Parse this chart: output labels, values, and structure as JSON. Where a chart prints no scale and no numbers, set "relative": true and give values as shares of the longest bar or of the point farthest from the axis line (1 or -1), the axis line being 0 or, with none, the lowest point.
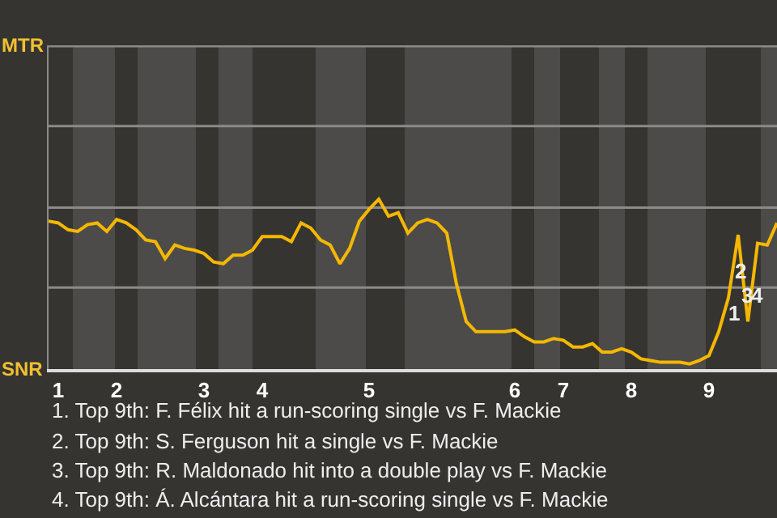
{
  "chart_data": {
    "type": "line",
    "relative": true,
    "marker": "none",
    "line_style": "solid",
    "ref_lines": [
      {
        "axis": "y",
        "value": 0.48,
        "color": "#8c8a88"
      },
      {
        "axis": "y",
        "value": 0.95,
        "color": "#8c8a88"
      },
      {
        "axis": "y",
        "value": 1.43,
        "color": "#8c8a88"
      },
      {
        "axis": "y",
        "value": 1.9,
        "color": "#8c8a88"
      }
    ],
    "categories": [
      null,
      "1",
      null,
      null,
      null,
      null,
      null,
      "2",
      null,
      null,
      null,
      null,
      null,
      null,
      null,
      null,
      "3",
      null,
      null,
      null,
      null,
      null,
      "4",
      null,
      null,
      null,
      null,
      null,
      null,
      null,
      null,
      null,
      null,
      "5",
      null,
      null,
      null,
      null,
      null,
      null,
      null,
      null,
      null,
      null,
      null,
      null,
      null,
      null,
      "6",
      null,
      null,
      null,
      null,
      "7",
      null,
      null,
      null,
      null,
      null,
      null,
      "8",
      null,
      null,
      null,
      null,
      null,
      null,
      null,
      "9",
      null,
      null,
      null,
      null,
      null,
      null,
      null
    ],
    "series": [
      {
        "color": "#f5b800",
        "values": [
          0.87,
          0.86,
          0.82,
          0.81,
          0.85,
          0.86,
          0.81,
          0.88,
          0.86,
          0.82,
          0.76,
          0.75,
          0.65,
          0.73,
          0.71,
          0.7,
          0.68,
          0.63,
          0.62,
          0.67,
          0.67,
          0.7,
          0.78,
          0.78,
          0.78,
          0.75,
          0.86,
          0.83,
          0.76,
          0.73,
          0.62,
          0.71,
          0.87,
          0.94,
          1,
          0.9,
          0.92,
          0.8,
          0.86,
          0.88,
          0.86,
          0.8,
          0.5,
          0.28,
          0.22,
          0.22,
          0.22,
          0.22,
          0.23,
          0.19,
          0.16,
          0.16,
          0.18,
          0.17,
          0.13,
          0.13,
          0.15,
          0.1,
          0.1,
          0.12,
          0.1,
          0.06,
          0.05,
          0.04,
          0.04,
          0.04,
          0.03,
          0.05,
          0.08,
          0.22,
          0.42,
          0.79,
          0.28,
          0.74,
          0.73,
          0.86
        ]
      }
    ],
    "annotations": [
      "MTR",
      "SNR",
      "1",
      "2",
      "3",
      "4",
      "1. Top 9th: F. Félix hit a run-scoring single vs F. Mackie",
      "2. Top 9th: S. Ferguson hit a single vs F. Mackie",
      "3. Top 9th: R. Maldonado hit into a double play vs F. Mackie",
      "4. Top 9th: Á. Alcántara hit a run-scoring single vs F. Mackie"
    ]
  }
}
